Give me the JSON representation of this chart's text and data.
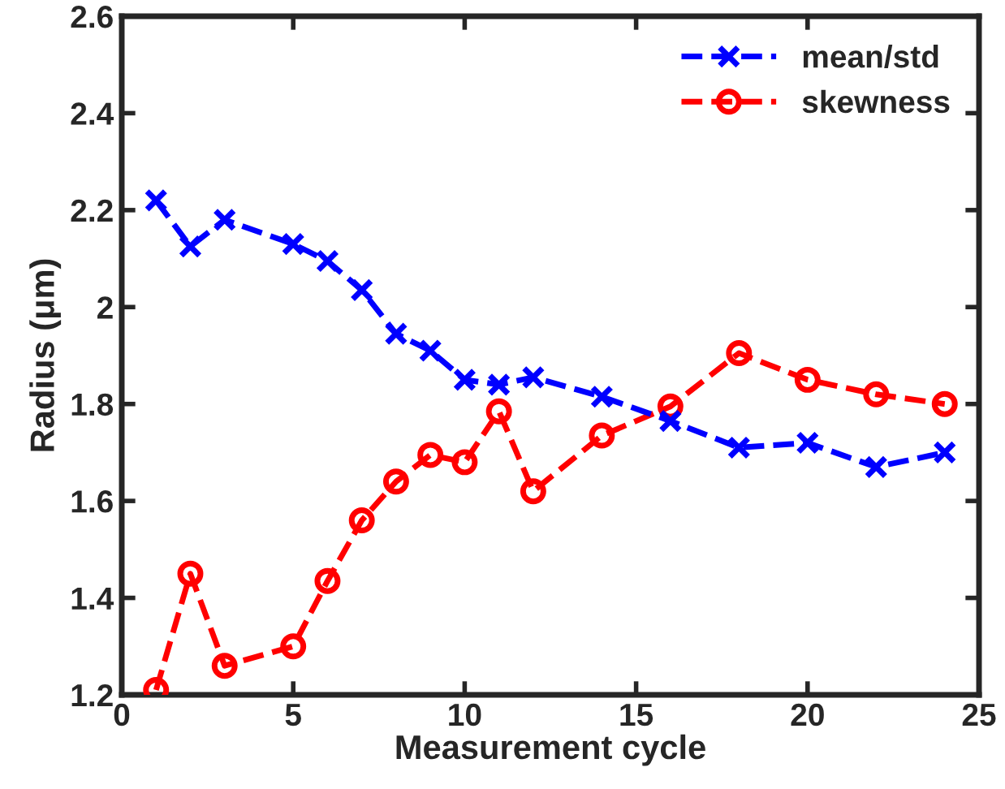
{
  "chart_data": {
    "type": "line",
    "xlabel": "Measurement cycle",
    "ylabel": "Radius (μm)",
    "x": [
      1,
      2,
      3,
      5,
      6,
      7,
      8,
      9,
      10,
      11,
      12,
      14,
      16,
      18,
      20,
      22,
      24
    ],
    "series": [
      {
        "name": "mean/std",
        "color": "#0000ff",
        "marker": "cross",
        "values": [
          2.22,
          2.125,
          2.18,
          2.13,
          2.095,
          2.035,
          1.945,
          1.91,
          1.85,
          1.84,
          1.855,
          1.815,
          1.765,
          1.71,
          1.72,
          1.67,
          1.7
        ]
      },
      {
        "name": "skewness",
        "color": "#ff0000",
        "marker": "circle",
        "values": [
          1.21,
          1.45,
          1.26,
          1.3,
          1.435,
          1.56,
          1.64,
          1.695,
          1.68,
          1.785,
          1.62,
          1.735,
          1.795,
          1.905,
          1.85,
          1.82,
          1.8
        ]
      }
    ],
    "line_style": "dashed",
    "xlim": [
      0,
      25
    ],
    "xticks": [
      0,
      5,
      10,
      15,
      20,
      25
    ],
    "ylim": [
      1.2,
      2.6
    ],
    "yticks": [
      1.2,
      1.4,
      1.6,
      1.8,
      2,
      2.2,
      2.4,
      2.6
    ],
    "grid": false,
    "legend": "top right"
  }
}
